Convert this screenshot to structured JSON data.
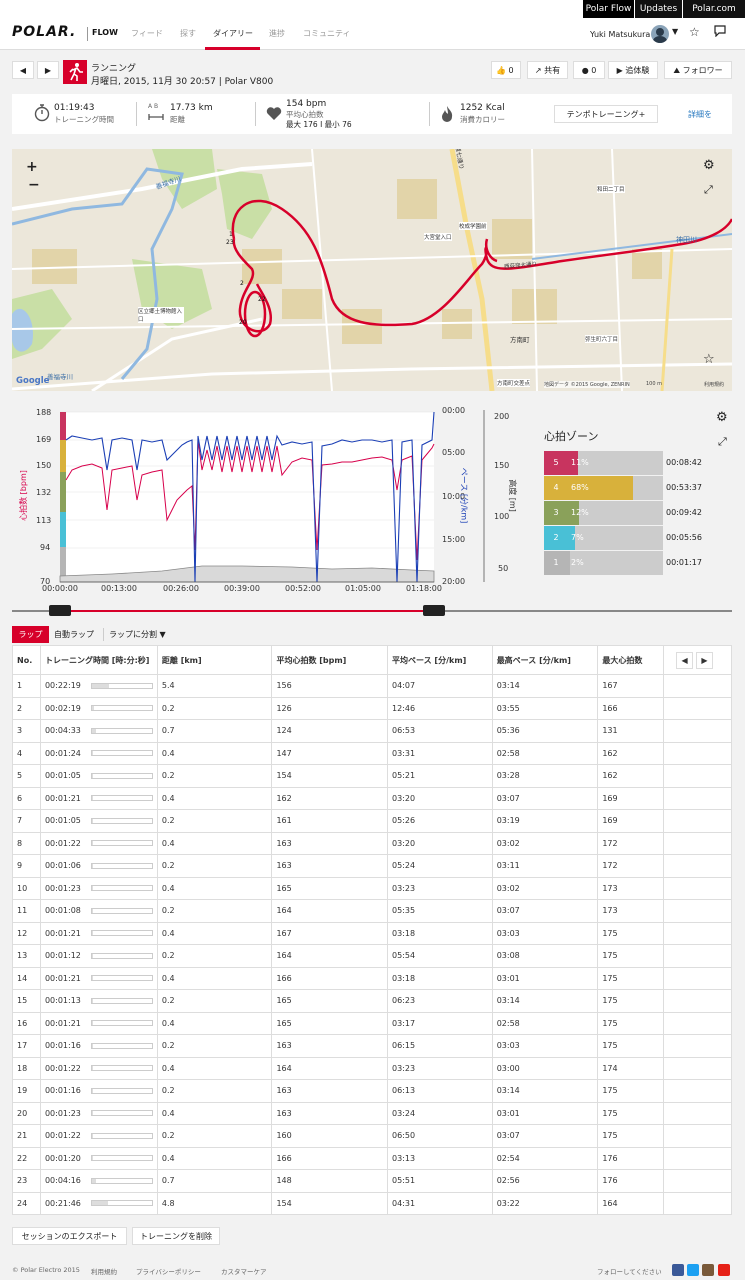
{
  "topbar": {
    "links": [
      "Polar Flow",
      "Updates",
      "Polar.com"
    ]
  },
  "header": {
    "logo": "POLAR.",
    "flow": "FLOW",
    "nav": [
      "フィード",
      "探す",
      "ダイアリー",
      "進捗",
      "コミュニティ"
    ],
    "active_nav": 2,
    "user": "Yuki Matsukura"
  },
  "session": {
    "sport": "ランニング",
    "datetime": "月曜日, 2015, 11月 30 20:57 | Polar V800",
    "likes": "0",
    "share_label": "共有",
    "comments": "0",
    "relive_label": "追体験",
    "follow_label": "フォロワー"
  },
  "summary": {
    "duration": "01:19:43",
    "duration_label": "トレーニング時間",
    "distance": "17.73 km",
    "distance_label": "距離",
    "ab_label": "A  B",
    "hr": "154 bpm",
    "hr_label": "平均心拍数",
    "hr_minmax": "最大 176  I  最小 76",
    "calories": "1252 Kcal",
    "calories_label": "消費カロリー",
    "tempo_button": "テンポトレーニング+",
    "details_link": "詳細を"
  },
  "map": {
    "zoom_in": "+",
    "zoom_out": "−",
    "google": "Google",
    "attribution": "地図データ ©2015 Google, ZENRIN",
    "scale": "100 m",
    "terms": "利用規約",
    "labels": [
      "善福寺川",
      "善福寺川",
      "区立郷土博物館入口",
      "方南町",
      "方南町交差点",
      "弥生町六丁目",
      "神田川",
      "和田二丁目",
      "環七通り",
      "大宮堂入口",
      "校成学園前",
      "西荻窪大通り"
    ],
    "lap_markers": [
      "1",
      "2",
      "20",
      "22",
      "23"
    ]
  },
  "chart_data": {
    "type": "line",
    "x_ticks": [
      "00:00:00",
      "00:13:00",
      "00:26:00",
      "00:39:00",
      "00:52:00",
      "01:05:00",
      "01:18:00"
    ],
    "y_left_label": "心拍数 [bpm]",
    "y_left_ticks": [
      "188",
      "169",
      "150",
      "132",
      "113",
      "94",
      "70"
    ],
    "y_pace_label": "ペース [分/km]",
    "y_pace_ticks": [
      "00:00",
      "05:00",
      "10:00",
      "15:00",
      "20:00"
    ],
    "y_alt_label": "高度 [m]",
    "y_alt_ticks": [
      "200",
      "150",
      "100",
      "50"
    ],
    "series": [
      {
        "name": "心拍数 [bpm]"
      },
      {
        "name": "ペース [分/km]"
      },
      {
        "name": "高度 [m]"
      }
    ]
  },
  "zones": {
    "title": "心拍ゾーン",
    "rows": [
      {
        "zone": "5",
        "pct": "11%",
        "fraction": 0.11,
        "time": "00:08:42",
        "color": "#c8345f"
      },
      {
        "zone": "4",
        "pct": "68%",
        "fraction": 0.68,
        "time": "00:53:37",
        "color": "#d8b13b"
      },
      {
        "zone": "3",
        "pct": "12%",
        "fraction": 0.12,
        "time": "00:09:42",
        "color": "#8aa15a"
      },
      {
        "zone": "2",
        "pct": "7%",
        "fraction": 0.07,
        "time": "00:05:56",
        "color": "#49c0d6"
      },
      {
        "zone": "1",
        "pct": "2%",
        "fraction": 0.02,
        "time": "00:01:17",
        "color": "#b5b5b5"
      }
    ]
  },
  "laps": {
    "tabs": [
      "ラップ",
      "自動ラップ",
      "ラップに分割"
    ],
    "headers": [
      "No.",
      "トレーニング時間 [時:分:秒]",
      "距離 [km]",
      "平均心拍数 [bpm]",
      "平均ペース [分/km]",
      "最高ペース [分/km]",
      "最大心拍数"
    ],
    "rows": [
      [
        "1",
        "00:22:19",
        "5.4",
        "156",
        "04:07",
        "03:14",
        "167",
        0.28
      ],
      [
        "2",
        "00:02:19",
        "0.2",
        "126",
        "12:46",
        "03:55",
        "166",
        0.03
      ],
      [
        "3",
        "00:04:33",
        "0.7",
        "124",
        "06:53",
        "05:36",
        "131",
        0.06
      ],
      [
        "4",
        "00:01:24",
        "0.4",
        "147",
        "03:31",
        "02:58",
        "162",
        0.02
      ],
      [
        "5",
        "00:01:05",
        "0.2",
        "154",
        "05:21",
        "03:28",
        "162",
        0.015
      ],
      [
        "6",
        "00:01:21",
        "0.4",
        "162",
        "03:20",
        "03:07",
        "169",
        0.02
      ],
      [
        "7",
        "00:01:05",
        "0.2",
        "161",
        "05:26",
        "03:19",
        "169",
        0.015
      ],
      [
        "8",
        "00:01:22",
        "0.4",
        "163",
        "03:20",
        "03:02",
        "172",
        0.02
      ],
      [
        "9",
        "00:01:06",
        "0.2",
        "163",
        "05:24",
        "03:11",
        "172",
        0.015
      ],
      [
        "10",
        "00:01:23",
        "0.4",
        "165",
        "03:23",
        "03:02",
        "173",
        0.02
      ],
      [
        "11",
        "00:01:08",
        "0.2",
        "164",
        "05:35",
        "03:07",
        "173",
        0.015
      ],
      [
        "12",
        "00:01:21",
        "0.4",
        "167",
        "03:18",
        "03:03",
        "175",
        0.02
      ],
      [
        "13",
        "00:01:12",
        "0.2",
        "164",
        "05:54",
        "03:08",
        "175",
        0.015
      ],
      [
        "14",
        "00:01:21",
        "0.4",
        "166",
        "03:18",
        "03:01",
        "175",
        0.02
      ],
      [
        "15",
        "00:01:13",
        "0.2",
        "165",
        "06:23",
        "03:14",
        "175",
        0.015
      ],
      [
        "16",
        "00:01:21",
        "0.4",
        "165",
        "03:17",
        "02:58",
        "175",
        0.02
      ],
      [
        "17",
        "00:01:16",
        "0.2",
        "163",
        "06:15",
        "03:03",
        "175",
        0.015
      ],
      [
        "18",
        "00:01:22",
        "0.4",
        "164",
        "03:23",
        "03:00",
        "174",
        0.02
      ],
      [
        "19",
        "00:01:16",
        "0.2",
        "163",
        "06:13",
        "03:14",
        "175",
        0.015
      ],
      [
        "20",
        "00:01:23",
        "0.4",
        "163",
        "03:24",
        "03:01",
        "175",
        0.02
      ],
      [
        "21",
        "00:01:22",
        "0.2",
        "160",
        "06:50",
        "03:07",
        "175",
        0.02
      ],
      [
        "22",
        "00:01:20",
        "0.4",
        "166",
        "03:13",
        "02:54",
        "176",
        0.02
      ],
      [
        "23",
        "00:04:16",
        "0.7",
        "148",
        "05:51",
        "02:56",
        "176",
        0.06
      ],
      [
        "24",
        "00:21:46",
        "4.8",
        "154",
        "04:31",
        "03:22",
        "164",
        0.27
      ]
    ]
  },
  "actions": {
    "export": "セッションのエクスポート",
    "delete": "トレーニングを削除"
  },
  "footer": {
    "links": [
      "© Polar Electro 2015",
      "利用規約",
      "プライバシーポリシー",
      "カスタマーケア"
    ],
    "follow": "フォローしてください"
  }
}
